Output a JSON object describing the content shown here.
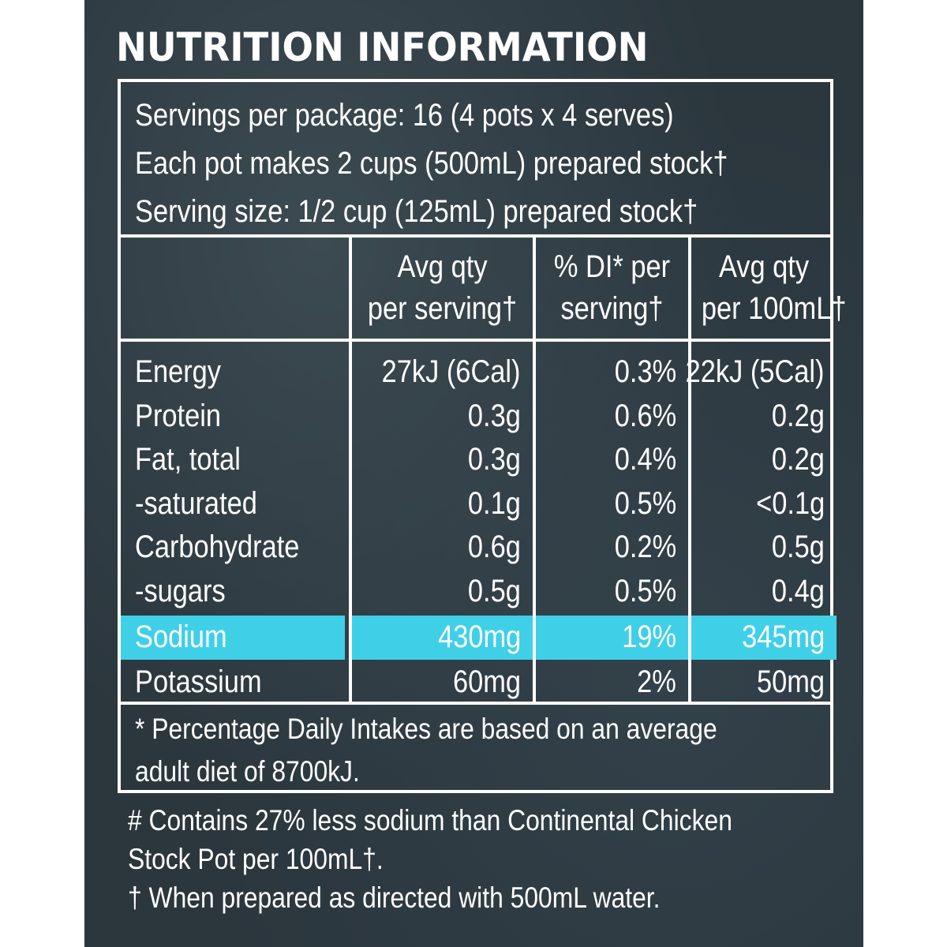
{
  "title": "NUTRITION INFORMATION",
  "serving_info": [
    "Servings per package: 16 (4 pots x 4 serves)",
    "Each pot makes 2 cups (500mL) prepared stock†",
    "Serving size: 1/2 cup (125mL) prepared stock†"
  ],
  "columns": [
    {
      "line1": "Avg qty",
      "line2": "per serving†"
    },
    {
      "line1": "% DI* per",
      "line2": "serving†"
    },
    {
      "line1": "Avg qty",
      "line2": "per 100mL†"
    }
  ],
  "rows": [
    {
      "label": "Energy",
      "per_serving": "27kJ (6Cal)",
      "di": "0.3%",
      "per_100ml": "22kJ (5Cal)"
    },
    {
      "label": "Protein",
      "per_serving": "0.3g",
      "di": "0.6%",
      "per_100ml": "0.2g"
    },
    {
      "label": "Fat, total",
      "per_serving": "0.3g",
      "di": "0.4%",
      "per_100ml": "0.2g"
    },
    {
      "label": "-saturated",
      "per_serving": "0.1g",
      "di": "0.5%",
      "per_100ml": "<0.1g"
    },
    {
      "label": "Carbohydrate",
      "per_serving": "0.6g",
      "di": "0.2%",
      "per_100ml": "0.5g"
    },
    {
      "label": "-sugars",
      "per_serving": "0.5g",
      "di": "0.5%",
      "per_100ml": "0.4g"
    },
    {
      "label": "Sodium",
      "per_serving": "430mg",
      "di": "19%",
      "per_100ml": "345mg",
      "highlight": true
    },
    {
      "label": "Potassium",
      "per_serving": "60mg",
      "di": "2%",
      "per_100ml": "50mg"
    }
  ],
  "di_note": "* Percentage Daily Intakes are based on an average adult diet of 8700kJ.",
  "footnotes": [
    "# Contains 27% less sodium than Continental Chicken",
    "Stock Pot per 100mL†.",
    "† When prepared as directed with 500mL water."
  ],
  "colors": {
    "background": "#2b363d",
    "highlight": "#3fd0e8",
    "text": "#ffffff"
  }
}
